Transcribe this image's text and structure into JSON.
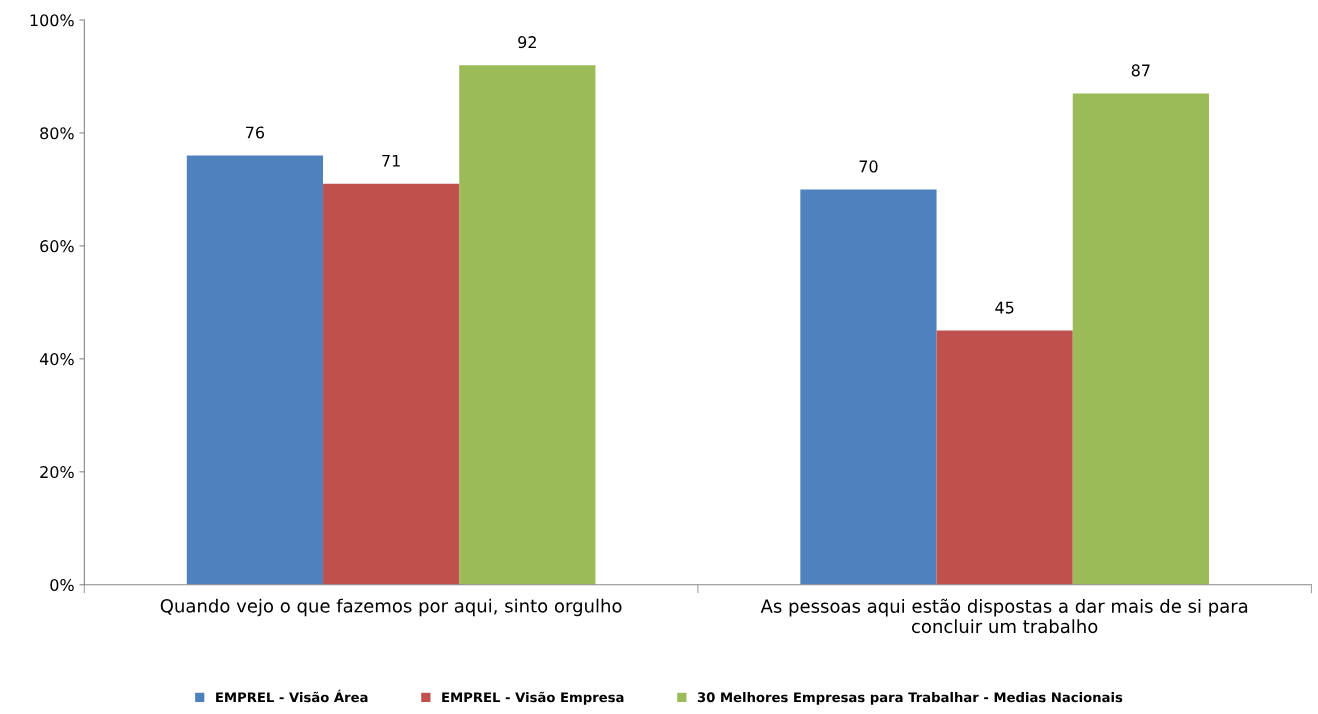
{
  "chart_data": {
    "type": "bar",
    "categories": [
      "Quando vejo o que fazemos por aqui, sinto orgulho",
      "As pessoas aqui estão dispostas a dar mais de si para\nconcluir um trabalho"
    ],
    "series": [
      {
        "name": "EMPREL - Visão Área",
        "color": "#4f81bd",
        "values": [
          76,
          70
        ]
      },
      {
        "name": "EMPREL - Visão Empresa",
        "color": "#c0504d",
        "values": [
          71,
          45
        ]
      },
      {
        "name": "30 Melhores Empresas para Trabalhar - Medias Nacionais",
        "color": "#9bbb59",
        "values": [
          92,
          87
        ]
      }
    ],
    "ylim": [
      0,
      100
    ],
    "yticks": [
      {
        "value": 0,
        "label": "0%"
      },
      {
        "value": 20,
        "label": "20%"
      },
      {
        "value": 40,
        "label": "40%"
      },
      {
        "value": 60,
        "label": "60%"
      },
      {
        "value": 80,
        "label": "80%"
      },
      {
        "value": 100,
        "label": "100%"
      }
    ],
    "data_labels": true,
    "grid": false,
    "legend": "bottom"
  }
}
